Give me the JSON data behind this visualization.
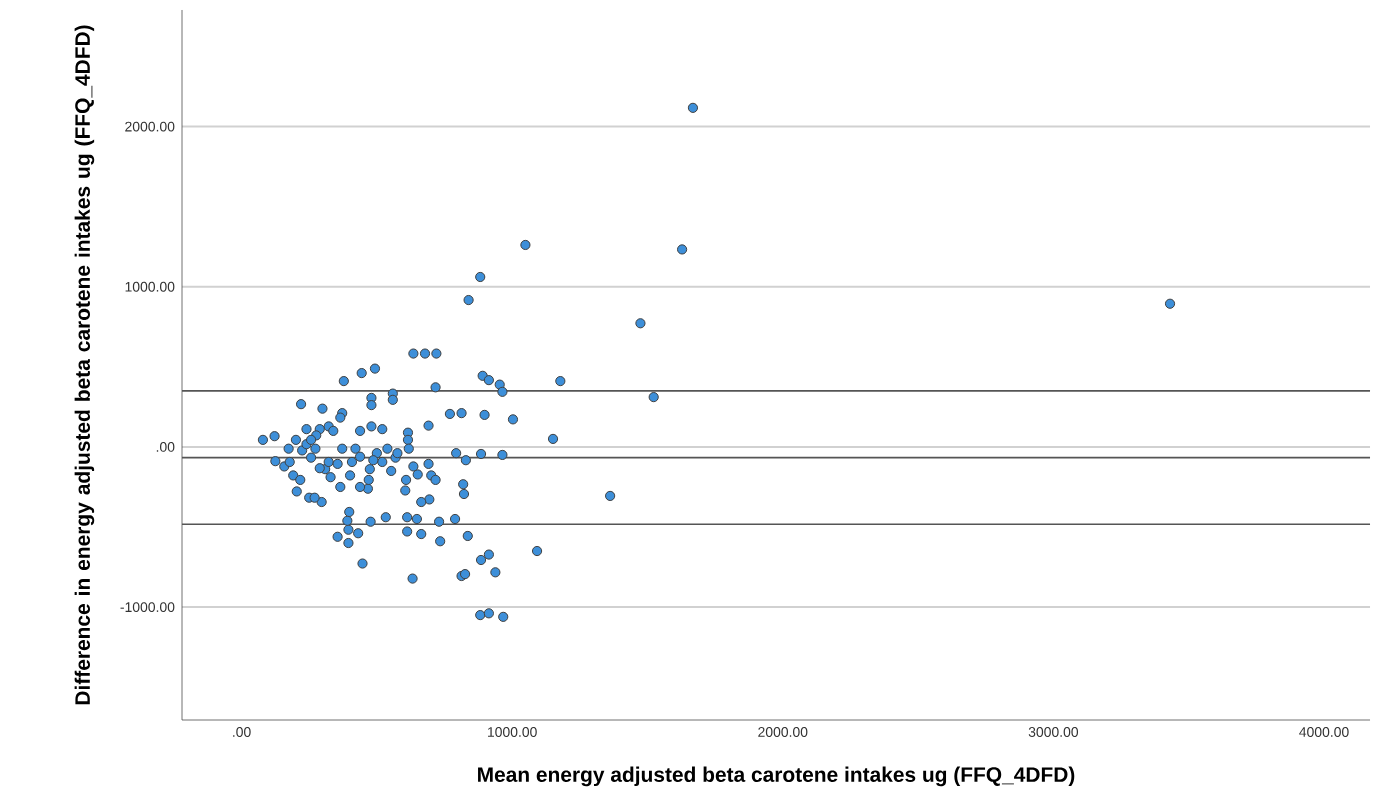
{
  "chart_data": {
    "type": "scatter",
    "xlabel": "Mean energy adjusted beta carotene intakes ug (FFQ_4DFD)",
    "ylabel": "Difference in energy adjusted beta carotene intakes ug (FFQ_4DFD)",
    "xlim": [
      -220,
      4170
    ],
    "ylim": [
      -1705,
      2728
    ],
    "xticks": [
      {
        "value": 0,
        "label": ".00"
      },
      {
        "value": 1000,
        "label": "1000.00"
      },
      {
        "value": 2000,
        "label": "2000.00"
      },
      {
        "value": 3000,
        "label": "3000.00"
      },
      {
        "value": 4000,
        "label": "4000.00"
      }
    ],
    "yticks": [
      {
        "value": -1000,
        "label": "-1000.00"
      },
      {
        "value": 0,
        "label": ".00"
      },
      {
        "value": 1000,
        "label": "1000.00"
      },
      {
        "value": 2000,
        "label": "2000.00"
      }
    ],
    "grid": "y",
    "marker": "circle",
    "ref_lines": [
      {
        "axis": "y",
        "value": 350,
        "color": "#555555"
      },
      {
        "axis": "y",
        "value": -67,
        "color": "#555555"
      },
      {
        "axis": "y",
        "value": -483,
        "color": "#555555"
      }
    ],
    "series": [
      {
        "color": "#3d8fd9",
        "x": [
          1668,
          1049,
          1628,
          882,
          839,
          3431,
          1474,
          635,
          678,
          720,
          1178,
          891,
          914,
          954,
          964,
          1523,
          444,
          493,
          378,
          717,
          480,
          480,
          559,
          559,
          1003,
          770,
          813,
          898,
          691,
          1151,
          615,
          615,
          220,
          299,
          372,
          365,
          79,
          122,
          322,
          289,
          339,
          240,
          276,
          438,
          480,
          520,
          885,
          964,
          793,
          829,
          1362,
          1092,
          819,
          822,
          701,
          694,
          730,
          789,
          605,
          612,
          648,
          533,
          612,
          664,
          734,
          836,
          885,
          914,
          938,
          813,
          826,
          447,
          632,
          882,
          914,
          967,
          477,
          431,
          395,
          355,
          395,
          391,
          398,
          204,
          250,
          296,
          270,
          125,
          158,
          178,
          191,
          217,
          467,
          470,
          474,
          553,
          569,
          520,
          608,
          651,
          664,
          438,
          365,
          401,
          329,
          309,
          257,
          224,
          240,
          273,
          372,
          421,
          438,
          322,
          289,
          355,
          500,
          539,
          576,
          618,
          635,
          691,
          717,
          408,
          487,
          174,
          201,
          257
        ],
        "values": [
          2117,
          1261,
          1233,
          1061,
          917,
          894,
          772,
          583,
          583,
          583,
          411,
          444,
          417,
          389,
          344,
          311,
          461,
          489,
          411,
          372,
          306,
          261,
          333,
          294,
          172,
          206,
          211,
          200,
          133,
          50,
          89,
          44,
          267,
          239,
          211,
          183,
          44,
          67,
          128,
          111,
          100,
          111,
          72,
          100,
          128,
          111,
          -44,
          -50,
          -39,
          -83,
          -306,
          -650,
          -233,
          -294,
          -178,
          -328,
          -467,
          -450,
          -272,
          -439,
          -450,
          -439,
          -528,
          -544,
          -589,
          -556,
          -706,
          -672,
          -783,
          -806,
          -794,
          -728,
          -822,
          -1050,
          -1039,
          -1061,
          -467,
          -539,
          -517,
          -561,
          -600,
          -461,
          -406,
          -278,
          -317,
          -344,
          -317,
          -89,
          -122,
          -94,
          -178,
          -206,
          -261,
          -206,
          -139,
          -150,
          -67,
          -94,
          -206,
          -172,
          -344,
          -250,
          -250,
          -178,
          -189,
          -139,
          -67,
          -22,
          17,
          -11,
          -11,
          -11,
          -61,
          -94,
          -133,
          -106,
          -39,
          -11,
          -39,
          -11,
          -122,
          -106,
          -206,
          -94,
          -83,
          -11,
          44,
          44
        ]
      }
    ]
  }
}
